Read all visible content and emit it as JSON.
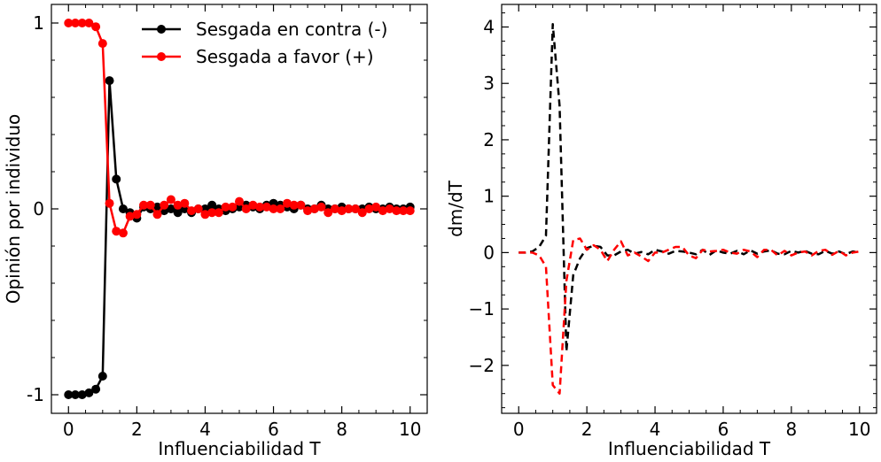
{
  "chart_data": [
    {
      "type": "line",
      "title": "",
      "xlabel": "Influenciabilidad T",
      "ylabel": "Opinión por individuo",
      "xlim": [
        -0.5,
        10.5
      ],
      "ylim": [
        -1.1,
        1.1
      ],
      "xticks": [
        0,
        2,
        4,
        6,
        8,
        10
      ],
      "xtick_labels": [
        "0",
        "2",
        "4",
        "6",
        "8",
        "10"
      ],
      "yticks": [
        -1,
        0,
        1
      ],
      "ytick_labels": [
        "-1",
        "0",
        "1"
      ],
      "legend": "top-right",
      "x": [
        0.0,
        0.2,
        0.4,
        0.6,
        0.8,
        1.0,
        1.2,
        1.4,
        1.6,
        1.8,
        2.0,
        2.2,
        2.4,
        2.6,
        2.8,
        3.0,
        3.2,
        3.4,
        3.6,
        3.8,
        4.0,
        4.2,
        4.4,
        4.6,
        4.8,
        5.0,
        5.2,
        5.4,
        5.6,
        5.8,
        6.0,
        6.2,
        6.4,
        6.6,
        6.8,
        7.0,
        7.2,
        7.4,
        7.6,
        7.8,
        8.0,
        8.2,
        8.4,
        8.6,
        8.8,
        9.0,
        9.2,
        9.4,
        9.6,
        9.8,
        10.0
      ],
      "series": [
        {
          "name": "Sesgada en contra (-)",
          "color": "#000000",
          "values": [
            -1.0,
            -1.0,
            -1.0,
            -0.99,
            -0.97,
            -0.9,
            0.69,
            0.16,
            0.0,
            -0.02,
            -0.05,
            0.01,
            0.0,
            0.01,
            -0.01,
            0.0,
            -0.02,
            0.0,
            -0.02,
            0.0,
            0.0,
            0.02,
            0.0,
            -0.01,
            0.0,
            0.01,
            0.02,
            0.01,
            0.0,
            0.02,
            0.03,
            0.02,
            0.01,
            0.0,
            0.02,
            0.0,
            0.0,
            0.02,
            0.0,
            0.0,
            0.01,
            0.0,
            0.0,
            0.0,
            0.01,
            0.0,
            0.0,
            0.01,
            0.0,
            0.0,
            0.01
          ]
        },
        {
          "name": "Sesgada a favor (+)",
          "color": "#ff0000",
          "values": [
            1.0,
            1.0,
            1.0,
            1.0,
            0.98,
            0.89,
            0.03,
            -0.12,
            -0.13,
            -0.04,
            -0.03,
            0.02,
            0.02,
            -0.03,
            0.02,
            0.05,
            0.02,
            0.03,
            -0.01,
            0.0,
            -0.03,
            -0.02,
            -0.02,
            0.01,
            0.01,
            0.04,
            0.0,
            0.02,
            0.01,
            0.01,
            0.0,
            0.0,
            0.03,
            0.02,
            0.02,
            -0.01,
            0.0,
            0.01,
            -0.02,
            0.0,
            -0.01,
            0.0,
            0.0,
            -0.02,
            0.0,
            0.01,
            -0.01,
            0.0,
            -0.01,
            -0.01,
            -0.01
          ]
        }
      ]
    },
    {
      "type": "line",
      "title": "",
      "xlabel": "Influenciabilidad T",
      "ylabel": "dm/dT",
      "xlim": [
        -0.5,
        10.5
      ],
      "ylim": [
        -2.85,
        4.4
      ],
      "xticks": [
        0,
        2,
        4,
        6,
        8,
        10
      ],
      "xtick_labels": [
        "0",
        "2",
        "4",
        "6",
        "8",
        "10"
      ],
      "yticks": [
        -2,
        -1,
        0,
        1,
        2,
        3,
        4
      ],
      "ytick_labels": [
        "−2",
        "−1",
        "0",
        "1",
        "2",
        "3",
        "4"
      ],
      "x": [
        0.0,
        0.2,
        0.4,
        0.6,
        0.8,
        1.0,
        1.2,
        1.4,
        1.6,
        1.8,
        2.0,
        2.2,
        2.4,
        2.6,
        2.8,
        3.0,
        3.2,
        3.4,
        3.6,
        3.8,
        4.0,
        4.2,
        4.4,
        4.6,
        4.8,
        5.0,
        5.2,
        5.4,
        5.6,
        5.8,
        6.0,
        6.2,
        6.4,
        6.6,
        6.8,
        7.0,
        7.2,
        7.4,
        7.6,
        7.8,
        8.0,
        8.2,
        8.4,
        8.6,
        8.8,
        9.0,
        9.2,
        9.4,
        9.6,
        9.8,
        10.0
      ],
      "series": [
        {
          "color": "#000000",
          "dash": "dashed",
          "values": [
            0.0,
            0.0,
            0.02,
            0.1,
            0.3,
            4.05,
            2.6,
            -1.75,
            -0.4,
            -0.1,
            0.08,
            0.12,
            0.1,
            -0.05,
            -0.05,
            0.02,
            0.05,
            -0.02,
            0.01,
            -0.03,
            0.05,
            0.02,
            -0.02,
            0.03,
            0.02,
            0.0,
            -0.03,
            0.05,
            -0.04,
            0.04,
            0.0,
            -0.02,
            0.03,
            -0.03,
            0.04,
            -0.02,
            0.02,
            0.04,
            -0.02,
            -0.03,
            0.03,
            0.0,
            0.03,
            -0.02,
            -0.03,
            0.03,
            -0.02,
            0.02,
            -0.03,
            0.02,
            0.0
          ]
        },
        {
          "color": "#ff0000",
          "dash": "dashed",
          "values": [
            0.0,
            0.0,
            0.0,
            -0.05,
            -0.25,
            -2.35,
            -2.5,
            -0.5,
            0.22,
            0.25,
            0.05,
            0.13,
            0.05,
            -0.15,
            0.05,
            0.2,
            -0.05,
            0.0,
            -0.07,
            -0.15,
            0.0,
            0.0,
            0.05,
            0.1,
            0.1,
            -0.05,
            -0.1,
            0.05,
            0.02,
            0.03,
            0.05,
            0.0,
            -0.02,
            0.05,
            0.02,
            -0.08,
            0.05,
            0.05,
            -0.05,
            0.03,
            -0.05,
            0.0,
            0.02,
            -0.05,
            0.03,
            0.05,
            -0.04,
            0.03,
            -0.05,
            0.0,
            0.02
          ]
        }
      ]
    }
  ]
}
